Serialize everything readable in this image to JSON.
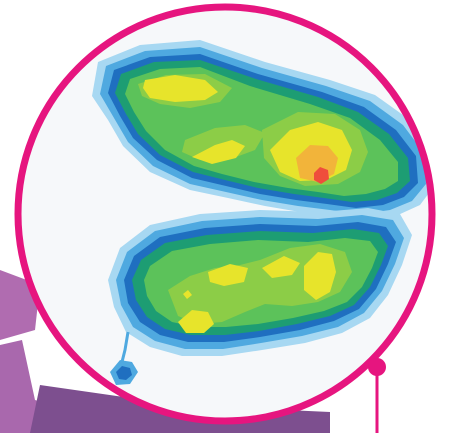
{
  "colors": {
    "frame": "#e6157f",
    "leader_line": "#e6157f",
    "strap_light": "#b06cb0",
    "strap_dark": "#7d4f8f",
    "background_inside": "#f4f7fa",
    "contour_levels": [
      "#a7d8f2",
      "#4fa9e0",
      "#1f6fc0",
      "#1d9d73",
      "#5cc25a",
      "#8ccd47",
      "#e7e42b",
      "#f2b43a",
      "#ef4d3c"
    ]
  },
  "icons": {
    "frame": "magnifier-circle-icon",
    "pointer": "callout-dot-icon"
  },
  "heatmap": {
    "lobes": [
      "upper-lobe",
      "lower-lobe"
    ]
  }
}
